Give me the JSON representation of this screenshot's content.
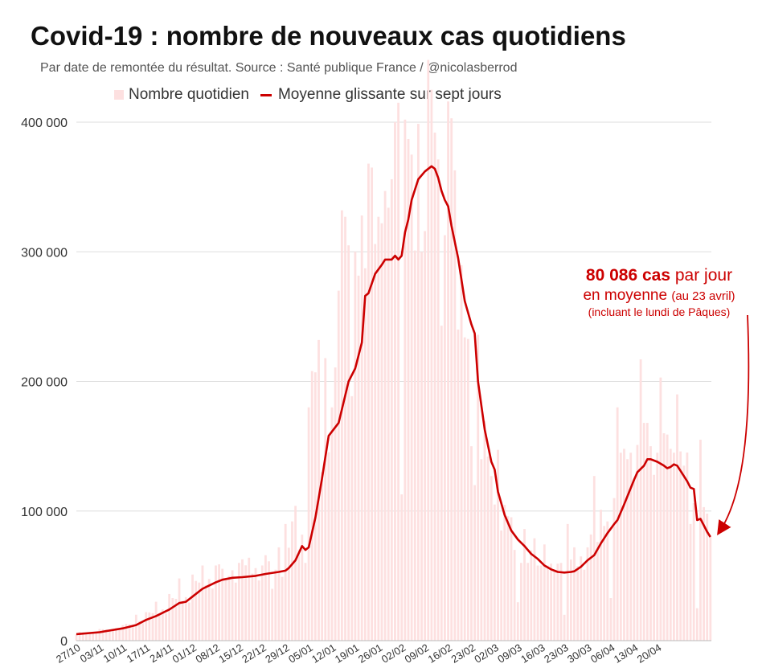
{
  "chart_data": {
    "type": "bar",
    "title": "Covid-19 : nombre de nouveaux cas quotidiens",
    "subtitle": "Par date de remontée du résultat. Source : Santé publique France / @nicolasberrod",
    "legend": {
      "bars": "Nombre quotidien",
      "line": "Moyenne glissante sur sept jours",
      "placement": "top"
    },
    "ylim": [
      0,
      400000
    ],
    "yticks": [
      0,
      100000,
      200000,
      300000,
      400000
    ],
    "ytick_labels": [
      "0",
      "100 000",
      "200 000",
      "300 000",
      "400 000"
    ],
    "xtick_labels": [
      "27/10",
      "03/11",
      "10/11",
      "17/11",
      "24/11",
      "01/12",
      "08/12",
      "15/12",
      "22/12",
      "29/12",
      "05/01",
      "12/01",
      "19/01",
      "26/01",
      "02/02",
      "09/02",
      "16/02",
      "23/02",
      "02/03",
      "09/03",
      "16/03",
      "23/03",
      "30/03",
      "06/04",
      "13/04",
      "20/04"
    ],
    "xtick_step_days": 7,
    "grid": true,
    "x_days": 180,
    "rolling_avg_knots": [
      [
        0,
        5000
      ],
      [
        7,
        6500
      ],
      [
        14,
        9500
      ],
      [
        18,
        12000
      ],
      [
        21,
        16000
      ],
      [
        24,
        19000
      ],
      [
        28,
        24000
      ],
      [
        31,
        29000
      ],
      [
        33,
        30000
      ],
      [
        35,
        34000
      ],
      [
        38,
        40000
      ],
      [
        42,
        45000
      ],
      [
        44,
        47000
      ],
      [
        47,
        48500
      ],
      [
        50,
        49000
      ],
      [
        54,
        50000
      ],
      [
        57,
        51500
      ],
      [
        61,
        53000
      ],
      [
        63,
        54000
      ],
      [
        64,
        56000
      ],
      [
        66,
        62000
      ],
      [
        68,
        73000
      ],
      [
        69,
        70000
      ],
      [
        70,
        72000
      ],
      [
        72,
        95000
      ],
      [
        74,
        125000
      ],
      [
        76,
        158000
      ],
      [
        79,
        168000
      ],
      [
        82,
        200000
      ],
      [
        84,
        210000
      ],
      [
        86,
        230000
      ],
      [
        87,
        266000
      ],
      [
        88,
        268000
      ],
      [
        90,
        283000
      ],
      [
        92,
        290000
      ],
      [
        93,
        294000
      ],
      [
        95,
        294000
      ],
      [
        96,
        297000
      ],
      [
        97,
        294000
      ],
      [
        98,
        297000
      ],
      [
        99,
        315000
      ],
      [
        100,
        325000
      ],
      [
        101,
        340000
      ],
      [
        103,
        356000
      ],
      [
        105,
        362000
      ],
      [
        107,
        366000
      ],
      [
        108,
        364000
      ],
      [
        109,
        357000
      ],
      [
        110,
        347000
      ],
      [
        111,
        340000
      ],
      [
        112,
        335000
      ],
      [
        113,
        320000
      ],
      [
        115,
        295000
      ],
      [
        117,
        262000
      ],
      [
        119,
        244000
      ],
      [
        120,
        237000
      ],
      [
        121,
        200000
      ],
      [
        123,
        163000
      ],
      [
        125,
        138000
      ],
      [
        126,
        132000
      ],
      [
        127,
        115000
      ],
      [
        129,
        97000
      ],
      [
        131,
        85000
      ],
      [
        133,
        78000
      ],
      [
        135,
        73000
      ],
      [
        137,
        67000
      ],
      [
        139,
        63000
      ],
      [
        141,
        58000
      ],
      [
        143,
        55000
      ],
      [
        145,
        53000
      ],
      [
        147,
        52500
      ],
      [
        149,
        53000
      ],
      [
        150,
        53500
      ],
      [
        152,
        57000
      ],
      [
        154,
        62000
      ],
      [
        156,
        66000
      ],
      [
        158,
        75000
      ],
      [
        160,
        83000
      ],
      [
        162,
        90000
      ],
      [
        163,
        93000
      ],
      [
        165,
        105000
      ],
      [
        168,
        124000
      ],
      [
        169,
        130000
      ],
      [
        171,
        135000
      ],
      [
        172,
        140000
      ],
      [
        173,
        140000
      ],
      [
        175,
        138000
      ],
      [
        177,
        135000
      ],
      [
        178,
        133000
      ],
      [
        179,
        134000
      ],
      [
        180,
        136000
      ],
      [
        181,
        135000
      ],
      [
        182,
        131000
      ],
      [
        184,
        123000
      ],
      [
        185,
        118000
      ],
      [
        186,
        117000
      ],
      [
        187,
        93000
      ],
      [
        188,
        94000
      ],
      [
        189,
        89000
      ],
      [
        190,
        84000
      ],
      [
        191,
        80000
      ]
    ],
    "rolling_avg_last_day": 191,
    "daily_peaks": [
      [
        0,
        5000
      ],
      [
        7,
        9000
      ],
      [
        14,
        12000
      ],
      [
        18,
        20000
      ],
      [
        21,
        22000
      ],
      [
        24,
        30000
      ],
      [
        28,
        36000
      ],
      [
        31,
        48000
      ],
      [
        35,
        51000
      ],
      [
        38,
        58000
      ],
      [
        42,
        58000
      ],
      [
        45,
        48000
      ],
      [
        49,
        60000
      ],
      [
        52,
        64000
      ],
      [
        56,
        58000
      ],
      [
        59,
        40000
      ],
      [
        61,
        72000
      ],
      [
        63,
        90000
      ],
      [
        65,
        92000
      ],
      [
        66,
        104000
      ],
      [
        69,
        60000
      ],
      [
        70,
        180000
      ],
      [
        71,
        208000
      ],
      [
        72,
        207000
      ],
      [
        73,
        232000
      ],
      [
        75,
        218000
      ],
      [
        77,
        180000
      ],
      [
        79,
        270000
      ],
      [
        80,
        332000
      ],
      [
        81,
        327000
      ],
      [
        82,
        305000
      ],
      [
        84,
        300000
      ],
      [
        86,
        328000
      ],
      [
        88,
        368000
      ],
      [
        89,
        365000
      ],
      [
        90,
        306000
      ],
      [
        91,
        327000
      ],
      [
        92,
        322000
      ],
      [
        94,
        334000
      ],
      [
        95,
        356000
      ],
      [
        96,
        400000
      ],
      [
        97,
        415000
      ],
      [
        99,
        402000
      ],
      [
        100,
        387000
      ],
      [
        101,
        375000
      ],
      [
        102,
        301000
      ],
      [
        104,
        300000
      ],
      [
        105,
        316000
      ],
      [
        106,
        448000
      ],
      [
        107,
        425000
      ],
      [
        108,
        392000
      ],
      [
        110,
        243000
      ],
      [
        112,
        416000
      ],
      [
        113,
        403000
      ],
      [
        115,
        240000
      ],
      [
        117,
        234000
      ],
      [
        119,
        150000
      ],
      [
        120,
        120000
      ],
      [
        122,
        140000
      ],
      [
        124,
        142000
      ],
      [
        126,
        105000
      ],
      [
        128,
        85000
      ],
      [
        130,
        96000
      ],
      [
        132,
        70000
      ],
      [
        134,
        60000
      ],
      [
        136,
        60000
      ],
      [
        138,
        79000
      ],
      [
        140,
        58000
      ],
      [
        142,
        58000
      ],
      [
        144,
        55000
      ],
      [
        146,
        60000
      ],
      [
        148,
        90000
      ],
      [
        150,
        72000
      ],
      [
        152,
        65000
      ],
      [
        154,
        72000
      ],
      [
        156,
        127000
      ],
      [
        158,
        101000
      ],
      [
        160,
        92000
      ],
      [
        162,
        110000
      ],
      [
        163,
        180000
      ],
      [
        164,
        145000
      ],
      [
        165,
        148000
      ],
      [
        166,
        140000
      ],
      [
        167,
        145000
      ],
      [
        168,
        125000
      ],
      [
        169,
        151000
      ],
      [
        170,
        217000
      ],
      [
        171,
        168000
      ],
      [
        172,
        168000
      ],
      [
        173,
        150000
      ],
      [
        175,
        145000
      ],
      [
        176,
        203000
      ],
      [
        177,
        160000
      ],
      [
        178,
        159000
      ],
      [
        179,
        148000
      ],
      [
        180,
        145000
      ],
      [
        181,
        190000
      ],
      [
        182,
        146000
      ],
      [
        183,
        135000
      ],
      [
        185,
        90000
      ],
      [
        186,
        106000
      ],
      [
        187,
        25000
      ],
      [
        188,
        155000
      ],
      [
        189,
        103000
      ],
      [
        190,
        98000
      ],
      [
        191,
        80000
      ]
    ]
  },
  "annotation": {
    "value": "80 086 cas",
    "per_day": "par jour",
    "average": "en moyenne",
    "date": "(au 23 avril)",
    "note": "(incluant le lundi de Pâques)"
  },
  "colors": {
    "accent": "#cc0000",
    "bar": "#fde0e0",
    "grid": "#dddddd",
    "text": "#333333"
  }
}
